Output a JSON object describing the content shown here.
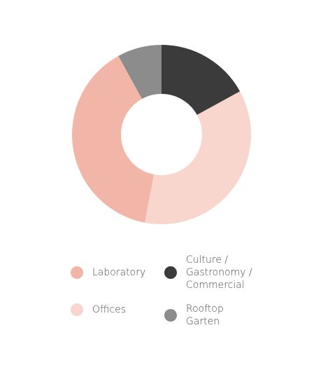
{
  "chart_data": {
    "type": "donut",
    "categories": [
      "Culture / Gastronomy / Commercial",
      "Offices",
      "Laboratory",
      "Rooftop Garten"
    ],
    "values": [
      17,
      36,
      39,
      8
    ],
    "colors": [
      "#3b3b3b",
      "#f8d6cd",
      "#f2b6a8",
      "#8c8c8c"
    ]
  }
}
